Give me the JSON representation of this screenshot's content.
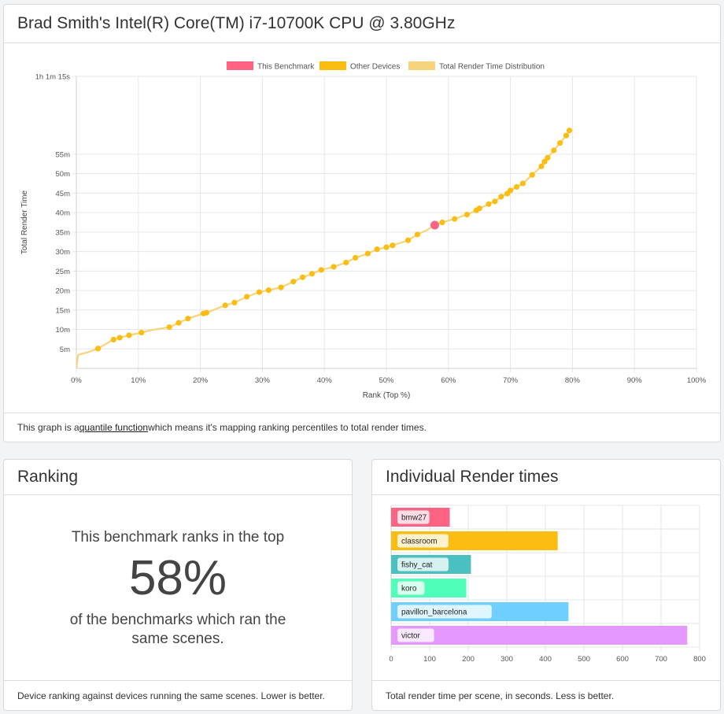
{
  "main_card": {
    "title": "Brad Smith's Intel(R) Core(TM) i7-10700K CPU @ 3.80GHz",
    "footer_prefix": "This graph is a ",
    "footer_link": "quantile function",
    "footer_suffix": " which means it's mapping ranking percentiles to total render times."
  },
  "ranking_card": {
    "title": "Ranking",
    "line1": "This benchmark ranks in the top",
    "percent": "58%",
    "line2": "of the benchmarks which ran the same scenes.",
    "footer": "Device ranking against devices running the same scenes. Lower is better."
  },
  "render_card": {
    "title": "Individual Render times",
    "footer": "Total render time per scene, in seconds. Less is better."
  },
  "colors": {
    "this_benchmark": "#ff6384",
    "other_devices": "#fbbd12",
    "distribution": "#f5d47c"
  },
  "chart_data": [
    {
      "type": "line",
      "xlabel": "Rank (Top %)",
      "ylabel": "Total Render Time",
      "xlim": [
        0,
        100
      ],
      "ylim_minutes": [
        0,
        75
      ],
      "x_ticks": [
        "0%",
        "10%",
        "20%",
        "30%",
        "40%",
        "50%",
        "60%",
        "70%",
        "80%",
        "90%",
        "100%"
      ],
      "y_ticks": [
        "5m",
        "10m",
        "15m",
        "20m",
        "25m",
        "30m",
        "35m",
        "40m",
        "45m",
        "50m",
        "55m",
        "1h 1m 15s"
      ],
      "legend": [
        "This Benchmark",
        "Other Devices",
        "Total Render Time Distribution"
      ],
      "legend_position": "top",
      "grid": true,
      "series": [
        {
          "name": "Total Render Time Distribution",
          "x": [
            0,
            0.3,
            1,
            2,
            3.5,
            5,
            6,
            7,
            8.5,
            10.5,
            12,
            15,
            16.5,
            18,
            20.5,
            21,
            24,
            25.5,
            27.5,
            29.5,
            31,
            33,
            35,
            36.5,
            38,
            39.5,
            41.5,
            43.5,
            45,
            47,
            48.5,
            50,
            51,
            53.5,
            55,
            56.5,
            57.8,
            59,
            61,
            63,
            64.5,
            65,
            66.5,
            67.5,
            68.5,
            69.5,
            70,
            71,
            72,
            73.5,
            75,
            75.5,
            76,
            77,
            78,
            79,
            79.5,
            80
          ],
          "y": [
            0,
            3.5,
            3.8,
            4.2,
            5.1,
            6.5,
            7.4,
            7.9,
            8.5,
            9.2,
            9.8,
            10.6,
            11.7,
            12.8,
            14.1,
            14.3,
            16.2,
            16.9,
            18.4,
            19.6,
            20.1,
            20.8,
            22.3,
            23.4,
            24.3,
            25.3,
            26.1,
            27.2,
            28.4,
            29.5,
            30.6,
            31.1,
            31.6,
            32.9,
            34.4,
            35.5,
            36.8,
            37.5,
            38.4,
            39.5,
            40.6,
            41.1,
            42.2,
            42.9,
            44.1,
            44.9,
            45.7,
            46.6,
            47.5,
            49.7,
            51.9,
            53.1,
            54.1,
            56.0,
            57.9,
            59.8,
            61.1,
            61.3
          ]
        },
        {
          "name": "Other Devices",
          "x": [
            3.5,
            6,
            7,
            8.5,
            10.5,
            15,
            16.5,
            18,
            20.5,
            21,
            24,
            25.5,
            27.5,
            29.5,
            31,
            33,
            35,
            36.5,
            38,
            39.5,
            41.5,
            43.5,
            45,
            47,
            48.5,
            50,
            51,
            53.5,
            55,
            59,
            61,
            63,
            64.5,
            65,
            66.5,
            67.5,
            68.5,
            69.5,
            70,
            71,
            72,
            73.5,
            75,
            75.5,
            76,
            77,
            78,
            79,
            79.5
          ],
          "y": [
            5.1,
            7.4,
            7.9,
            8.5,
            9.2,
            10.6,
            11.7,
            12.8,
            14.1,
            14.3,
            16.2,
            16.9,
            18.4,
            19.6,
            20.1,
            20.8,
            22.3,
            23.4,
            24.3,
            25.3,
            26.1,
            27.2,
            28.4,
            29.5,
            30.6,
            31.1,
            31.6,
            32.9,
            34.4,
            37.5,
            38.4,
            39.5,
            40.6,
            41.1,
            42.2,
            42.9,
            44.1,
            44.9,
            45.7,
            46.6,
            47.5,
            49.7,
            51.9,
            53.1,
            54.1,
            56.0,
            57.9,
            59.8,
            61.1
          ]
        },
        {
          "name": "This Benchmark",
          "x": [
            57.8
          ],
          "y": [
            36.8
          ]
        }
      ]
    },
    {
      "type": "bar",
      "orientation": "horizontal",
      "categories": [
        "bmw27",
        "classroom",
        "fishy_cat",
        "koro",
        "pavillon_barcelona",
        "victor"
      ],
      "values": [
        152,
        432,
        207,
        195,
        460,
        768
      ],
      "colors": [
        "#ff6384",
        "#fbbd12",
        "#4bc0c0",
        "#4dffb8",
        "#6fd0ff",
        "#e599ff"
      ],
      "xlim": [
        0,
        800
      ],
      "x_ticks": [
        "0",
        "100",
        "200",
        "300",
        "400",
        "500",
        "600",
        "700",
        "800"
      ],
      "grid": true
    }
  ]
}
